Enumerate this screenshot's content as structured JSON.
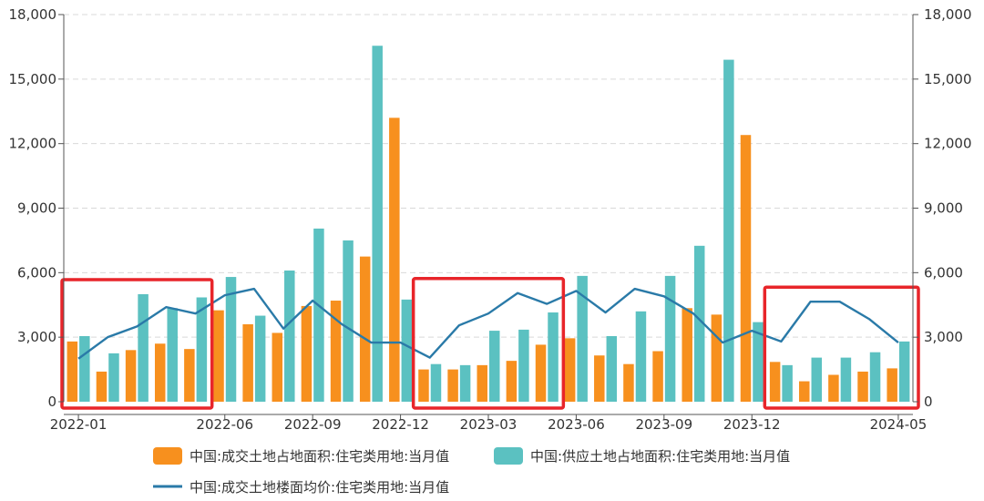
{
  "chart_data": {
    "type": "bar",
    "categories": [
      "2022-01",
      "2022-02",
      "2022-03",
      "2022-04",
      "2022-05",
      "2022-06",
      "2022-07",
      "2022-08",
      "2022-09",
      "2022-10",
      "2022-11",
      "2022-12",
      "2023-01",
      "2023-02",
      "2023-03",
      "2023-04",
      "2023-05",
      "2023-06",
      "2023-07",
      "2023-08",
      "2023-09",
      "2023-10",
      "2023-11",
      "2023-12",
      "2024-01",
      "2024-02",
      "2024-03",
      "2024-04",
      "2024-05"
    ],
    "x_tick_labels": [
      "2022-01",
      "2022-06",
      "2022-09",
      "2022-12",
      "2023-03",
      "2023-06",
      "2023-09",
      "2023-12",
      "2024-05"
    ],
    "x_tick_indices": [
      0,
      5,
      8,
      11,
      14,
      17,
      20,
      23,
      28
    ],
    "series": [
      {
        "name": "中国:成交土地占地面积:住宅类用地:当月值",
        "kind": "bar",
        "color": "#f7901e",
        "values": [
          2800,
          1400,
          2400,
          2700,
          2450,
          4250,
          3600,
          3200,
          4450,
          4700,
          6750,
          13200,
          1500,
          1500,
          1700,
          1900,
          2650,
          2950,
          2150,
          1750,
          2350,
          4350,
          4050,
          12400,
          1850,
          950,
          1250,
          1400,
          1550
        ]
      },
      {
        "name": "中国:供应土地占地面积:住宅类用地:当月值",
        "kind": "bar",
        "color": "#5bc1c1",
        "values": [
          3050,
          2250,
          5000,
          4350,
          4850,
          5800,
          4000,
          6100,
          8050,
          7500,
          16550,
          4750,
          1750,
          1700,
          3300,
          3350,
          4150,
          5850,
          3050,
          4200,
          5850,
          7250,
          15900,
          3700,
          1700,
          2050,
          2050,
          2300,
          2800
        ]
      },
      {
        "name": "中国:成交土地楼面均价:住宅类用地:当月值",
        "kind": "line",
        "color": "#2a7aa8",
        "values": [
          2000,
          3000,
          3500,
          4400,
          4100,
          4950,
          5250,
          3400,
          4700,
          3600,
          2750,
          2750,
          2050,
          3550,
          4100,
          5050,
          4550,
          5150,
          4150,
          5250,
          4900,
          4100,
          2750,
          3300,
          2800,
          4650,
          4650,
          3850,
          2750
        ]
      }
    ],
    "yticks": [
      "0",
      "3,000",
      "6,000",
      "9,000",
      "12,000",
      "15,000",
      "18,000"
    ],
    "y2ticks": [
      "0",
      "3,000",
      "6,000",
      "9,000",
      "12,000",
      "15,000",
      "18,000"
    ],
    "ylim": [
      0,
      18000
    ],
    "y2lim": [
      0,
      18000
    ],
    "grid": true,
    "legend_position": "bottom",
    "highlight_boxes": [
      {
        "from": "2022-01",
        "to": "2022-05",
        "color": "#e8252a"
      },
      {
        "from": "2023-01",
        "to": "2023-05",
        "color": "#e8252a"
      },
      {
        "from": "2024-01",
        "to": "2024-05",
        "color": "#e8252a"
      }
    ]
  }
}
